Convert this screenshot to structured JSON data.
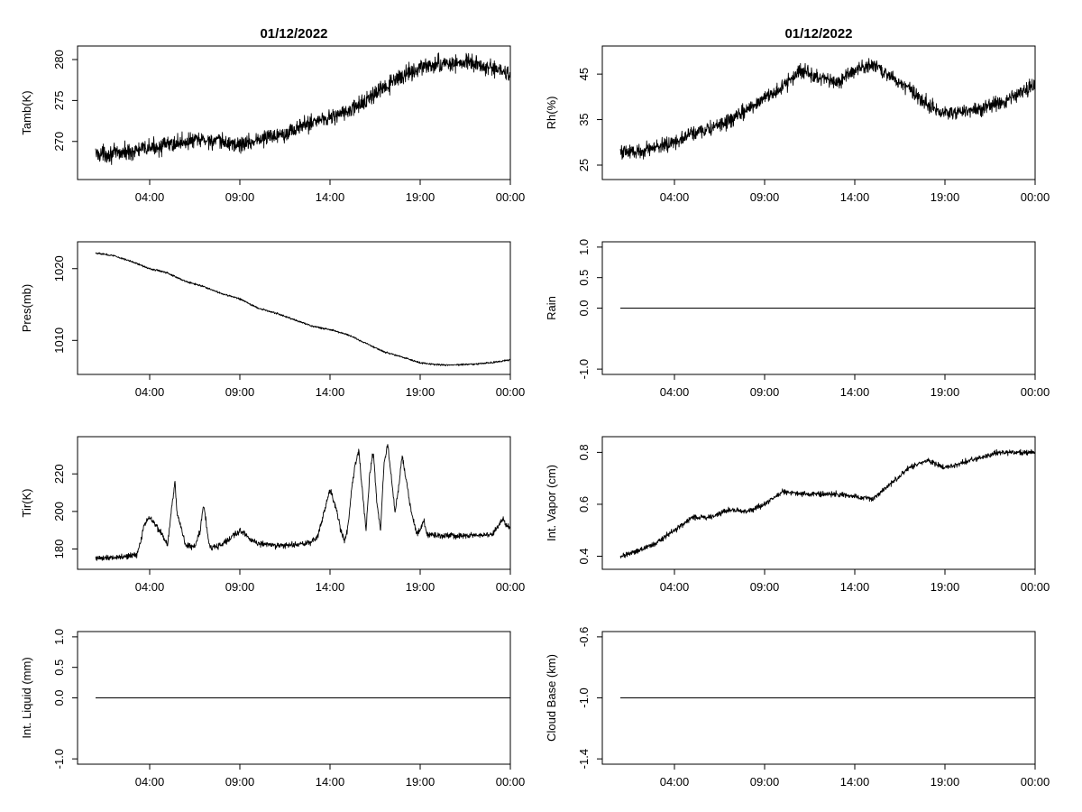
{
  "titles": [
    "01/12/2022",
    "01/12/2022"
  ],
  "x_tick_labels": [
    "04:00",
    "09:00",
    "14:00",
    "19:00",
    "00:00"
  ],
  "chart_data": [
    {
      "type": "line",
      "title": "01/12/2022",
      "ylabel": "Tamb(K)",
      "xlim": [
        0,
        24
      ],
      "ylim": [
        266,
        281
      ],
      "x_ticks": [
        4,
        9,
        14,
        19,
        24
      ],
      "y_ticks": [
        270,
        275,
        280
      ],
      "noise": 1.0,
      "series": [
        {
          "x": [
            1,
            2,
            3,
            4,
            5,
            6,
            7,
            8,
            9,
            10,
            11,
            12,
            13,
            14,
            15,
            16,
            17,
            18,
            19,
            20,
            21,
            22,
            23,
            23.5,
            24
          ],
          "y": [
            268.5,
            268.5,
            268.8,
            269.2,
            269.6,
            270.0,
            270.2,
            269.9,
            269.6,
            270.2,
            270.8,
            271.4,
            272.4,
            273.0,
            273.6,
            275.0,
            276.5,
            278.0,
            279.0,
            279.4,
            279.6,
            279.5,
            278.8,
            278.6,
            278.4
          ]
        }
      ]
    },
    {
      "type": "line",
      "title": "01/12/2022",
      "ylabel": "Rh(%)",
      "xlim": [
        0,
        24
      ],
      "ylim": [
        23,
        50
      ],
      "x_ticks": [
        4,
        9,
        14,
        19,
        24
      ],
      "y_ticks": [
        25,
        35,
        45
      ],
      "noise": 1.6,
      "series": [
        {
          "x": [
            1,
            2,
            3,
            4,
            5,
            6,
            7,
            8,
            9,
            10,
            11,
            12,
            13,
            14,
            15,
            16,
            17,
            18,
            19,
            20,
            21,
            22,
            23,
            24
          ],
          "y": [
            28,
            28,
            29,
            30,
            32,
            33,
            34.5,
            37,
            40,
            42,
            46,
            44,
            43,
            46,
            47,
            44.5,
            42,
            38.5,
            36.5,
            37,
            37.5,
            38.5,
            40.5,
            42.5
          ]
        }
      ]
    },
    {
      "type": "line",
      "ylabel": "Pres(mb)",
      "xlim": [
        0,
        24
      ],
      "ylim": [
        1006,
        1023
      ],
      "x_ticks": [
        4,
        9,
        14,
        19,
        24
      ],
      "y_ticks": [
        1010,
        1020
      ],
      "noise": 0.12,
      "series": [
        {
          "x": [
            1,
            2,
            3,
            4,
            5,
            6,
            7,
            8,
            9,
            10,
            11,
            12,
            13,
            14,
            15,
            16,
            17,
            18,
            19,
            20,
            21,
            22,
            23,
            24
          ],
          "y": [
            1022.2,
            1021.8,
            1021.0,
            1020.0,
            1019.4,
            1018.2,
            1017.5,
            1016.5,
            1015.8,
            1014.5,
            1013.8,
            1012.9,
            1012.0,
            1011.5,
            1010.8,
            1009.6,
            1008.4,
            1007.7,
            1006.9,
            1006.6,
            1006.6,
            1006.7,
            1006.9,
            1007.3
          ]
        }
      ]
    },
    {
      "type": "line",
      "ylabel": "Rain",
      "xlim": [
        0,
        24
      ],
      "ylim": [
        -1.0,
        1.0
      ],
      "x_ticks": [
        4,
        9,
        14,
        19,
        24
      ],
      "y_ticks": [
        -1.0,
        0.0,
        0.5,
        1.0
      ],
      "noise": 0,
      "series": [
        {
          "x": [
            1,
            24
          ],
          "y": [
            0,
            0
          ]
        }
      ]
    },
    {
      "type": "line",
      "ylabel": "Tir(K)",
      "xlim": [
        0,
        24
      ],
      "ylim": [
        172,
        237
      ],
      "x_ticks": [
        4,
        9,
        14,
        19,
        24
      ],
      "y_ticks": [
        180,
        200,
        220
      ],
      "noise": 1.6,
      "series": [
        {
          "x": [
            1,
            2,
            3,
            3.3,
            3.5,
            3.7,
            4.0,
            4.3,
            4.7,
            5.0,
            5.2,
            5.4,
            5.5,
            6.0,
            6.5,
            6.8,
            7.0,
            7.3,
            7.5,
            8.0,
            8.5,
            9.0,
            9.5,
            10.0,
            11,
            12,
            12.8,
            13.3,
            13.7,
            14.0,
            14.3,
            14.6,
            14.8,
            15.0,
            15.2,
            15.4,
            15.6,
            15.8,
            16.0,
            16.2,
            16.4,
            16.6,
            16.8,
            17.0,
            17.2,
            17.4,
            17.6,
            17.8,
            18.0,
            18.2,
            18.5,
            18.8,
            19.0,
            19.2,
            19.4,
            19.6,
            20,
            21,
            22,
            23,
            23.6,
            23.8,
            24
          ],
          "y": [
            175,
            175.5,
            176.5,
            177,
            184,
            193,
            197,
            193,
            188,
            182,
            200,
            216,
            200,
            182,
            181,
            190,
            204,
            182,
            181,
            182,
            186,
            190,
            186,
            183,
            182,
            182,
            183,
            186,
            200,
            212,
            203,
            190,
            184,
            192,
            212,
            225,
            232,
            210,
            190,
            220,
            232,
            205,
            190,
            226,
            236,
            218,
            200,
            212,
            230,
            218,
            200,
            188,
            190,
            195,
            187,
            188,
            187,
            187,
            187,
            188,
            196,
            192,
            191
          ]
        }
      ]
    },
    {
      "type": "line",
      "ylabel": "Int. Vapor (cm)",
      "xlim": [
        0,
        24
      ],
      "ylim": [
        0.37,
        0.84
      ],
      "x_ticks": [
        4,
        9,
        14,
        19,
        24
      ],
      "y_ticks": [
        0.4,
        0.6,
        0.8
      ],
      "noise": 0.01,
      "series": [
        {
          "x": [
            1,
            2,
            3,
            4,
            5,
            6,
            7,
            8,
            9,
            10,
            11,
            12,
            13,
            14,
            15,
            16,
            17,
            18,
            19,
            20,
            21,
            22,
            23,
            24
          ],
          "y": [
            0.4,
            0.42,
            0.45,
            0.5,
            0.55,
            0.55,
            0.58,
            0.57,
            0.6,
            0.65,
            0.64,
            0.64,
            0.64,
            0.63,
            0.62,
            0.68,
            0.74,
            0.77,
            0.74,
            0.76,
            0.78,
            0.8,
            0.8,
            0.8
          ]
        }
      ]
    },
    {
      "type": "line",
      "ylabel": "Int. Liquid (mm)",
      "xlim": [
        0,
        24
      ],
      "ylim": [
        -1.0,
        1.0
      ],
      "x_ticks": [
        4,
        9,
        14,
        19,
        24
      ],
      "y_ticks": [
        -1.0,
        0.0,
        0.5,
        1.0
      ],
      "noise": 0,
      "series": [
        {
          "x": [
            1,
            24
          ],
          "y": [
            0,
            0
          ]
        }
      ]
    },
    {
      "type": "line",
      "ylabel": "Cloud Base (km)",
      "xlim": [
        0,
        24
      ],
      "ylim": [
        -1.4,
        -0.6
      ],
      "x_ticks": [
        4,
        9,
        14,
        19,
        24
      ],
      "y_ticks": [
        -1.4,
        -1.0,
        -0.6
      ],
      "noise": 0,
      "series": [
        {
          "x": [
            1,
            24
          ],
          "y": [
            -1.0,
            -1.0
          ]
        }
      ]
    }
  ]
}
